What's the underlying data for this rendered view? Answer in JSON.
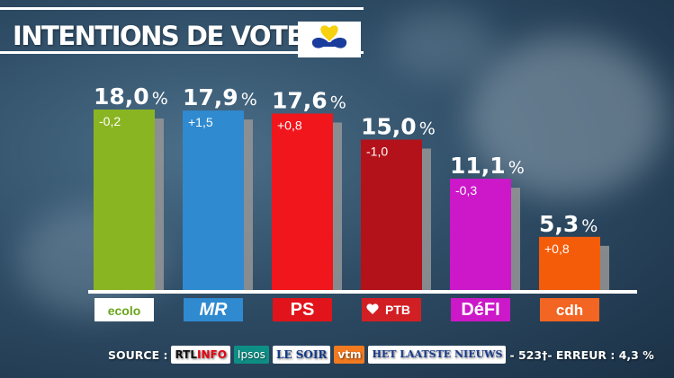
{
  "header": {
    "title": "INTENTIONS DE VOTE",
    "flag_icon": "brussels-iris-flag-icon"
  },
  "chart_data": {
    "type": "bar",
    "title": "INTENTIONS DE VOTE",
    "categories": [
      "Ecolo",
      "MR",
      "PS",
      "PTB",
      "DéFI",
      "cdH"
    ],
    "values": [
      18.0,
      17.9,
      17.6,
      15.0,
      11.1,
      5.3
    ],
    "value_labels": [
      "18,0",
      "17,9",
      "17,6",
      "15,0",
      "11,1",
      "5,3"
    ],
    "unit_label": "%",
    "changes": [
      "-0,2",
      "+1,5",
      "+0,8",
      "-1,0",
      "-0,3",
      "+0,8"
    ],
    "colors": [
      "#8ab522",
      "#2f8ad0",
      "#f0161c",
      "#b4121a",
      "#cc18c9",
      "#f55c0a"
    ],
    "ylim": [
      0,
      18.0
    ],
    "xlabel": "",
    "ylabel": "",
    "grid": false,
    "legend": "none"
  },
  "party_logos": [
    {
      "text": "ecolo",
      "name": "ecolo-logo",
      "color": "#6aa51c",
      "bg": "#ffffff"
    },
    {
      "text": "MR",
      "name": "mr-logo",
      "color": "#ffffff",
      "bg": "#2f8ad0"
    },
    {
      "text": "PS",
      "name": "ps-logo",
      "color": "#ffffff",
      "bg": "#e0141a"
    },
    {
      "text": "PTB",
      "name": "ptb-logo",
      "color": "#ffffff",
      "bg": "#d21f24"
    },
    {
      "text": "DéFI",
      "name": "defi-logo",
      "color": "#ffffff",
      "bg": "#cc18c9"
    },
    {
      "text": "cdh",
      "name": "cdh-logo",
      "color": "#ffffff",
      "bg": "#f26522"
    }
  ],
  "footer": {
    "source_label": "SOURCE :",
    "rtl_text": "RTL",
    "rtl_info": "INFO",
    "ipsos": "Ipsos",
    "lesoir": "LE SOIR",
    "vtm": "vtm",
    "hln": "HET LAATSTE NIEUWS",
    "sample": "- 523†- ERREUR : 4,3 %"
  }
}
